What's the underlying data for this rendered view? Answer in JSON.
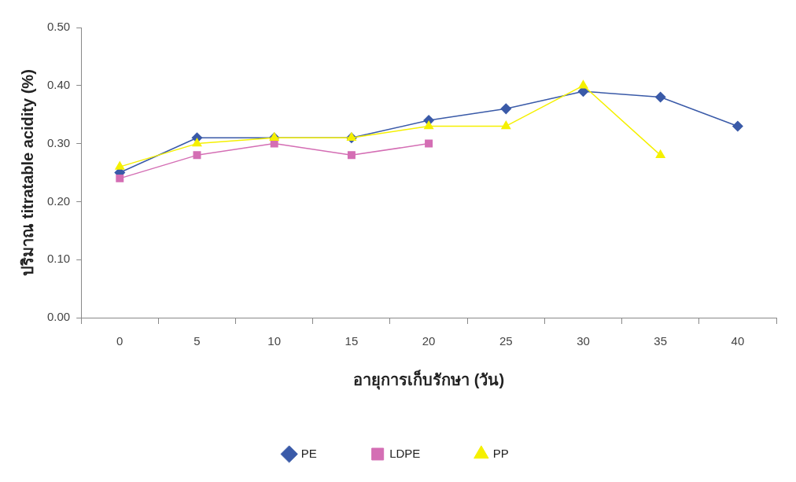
{
  "chart_data": {
    "type": "line",
    "xlabel": "อายุการเก็บรักษา (วัน)",
    "ylabel": "ปริมาณ titratable acidity (%)",
    "categories": [
      "0",
      "5",
      "10",
      "15",
      "20",
      "25",
      "30",
      "35",
      "40"
    ],
    "ylim": [
      0,
      0.5
    ],
    "yticks": [
      {
        "value": 0,
        "label": "0.00"
      },
      {
        "value": 0.1,
        "label": "0.10"
      },
      {
        "value": 0.2,
        "label": "0.20"
      },
      {
        "value": 0.3,
        "label": "0.30"
      },
      {
        "value": 0.4,
        "label": "0.40"
      },
      {
        "value": 0.5,
        "label": "0.50"
      }
    ],
    "grid": false,
    "legend": "bottom",
    "series": [
      {
        "name": "PE",
        "color": "#3a5aa8",
        "marker": "diamond",
        "values": [
          0.25,
          0.31,
          0.31,
          0.31,
          0.34,
          0.36,
          0.39,
          0.38,
          0.33
        ]
      },
      {
        "name": "LDPE",
        "color": "#d46eb4",
        "marker": "square",
        "values": [
          0.24,
          0.28,
          0.3,
          0.28,
          0.3,
          null,
          null,
          null,
          null
        ]
      },
      {
        "name": "PP",
        "color": "#f5f000",
        "marker": "triangle",
        "values": [
          0.26,
          0.3,
          0.31,
          0.31,
          0.33,
          0.33,
          0.4,
          0.28,
          null
        ]
      }
    ]
  }
}
